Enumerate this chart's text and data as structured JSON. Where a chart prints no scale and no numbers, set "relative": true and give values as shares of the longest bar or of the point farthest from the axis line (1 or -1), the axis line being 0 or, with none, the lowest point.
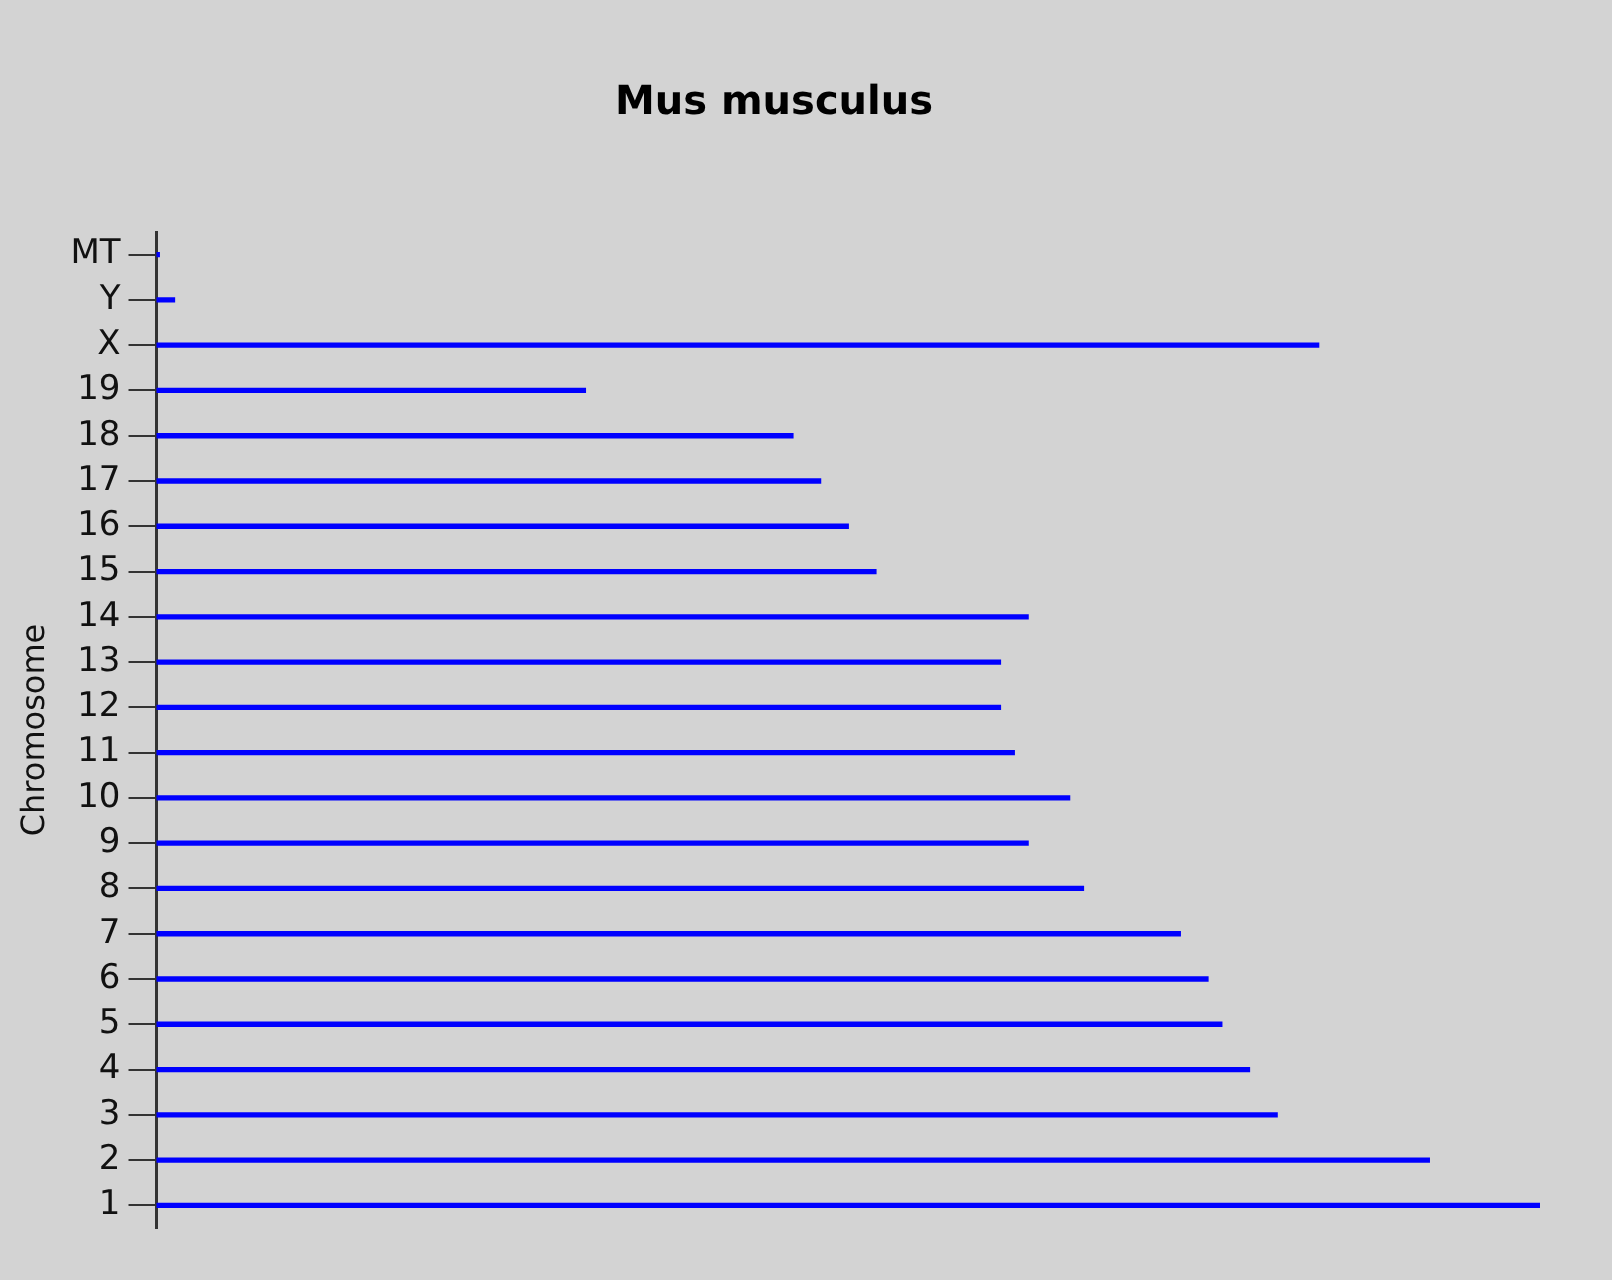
{
  "chart_data": {
    "type": "bar",
    "orientation": "horizontal",
    "relative": true,
    "title": "Mus musculus",
    "ylabel": "Chromosome",
    "categories": [
      "MT",
      "Y",
      "X",
      "19",
      "18",
      "17",
      "16",
      "15",
      "14",
      "13",
      "12",
      "11",
      "10",
      "9",
      "8",
      "7",
      "6",
      "5",
      "4",
      "3",
      "2",
      "1"
    ],
    "color": "#0000ff",
    "values": [
      0.002,
      0.013,
      0.84,
      0.31,
      0.46,
      0.48,
      0.5,
      0.52,
      0.63,
      0.61,
      0.61,
      0.62,
      0.66,
      0.63,
      0.67,
      0.74,
      0.76,
      0.77,
      0.79,
      0.81,
      0.92,
      1
    ],
    "legend": false,
    "tick_labels": "y"
  }
}
